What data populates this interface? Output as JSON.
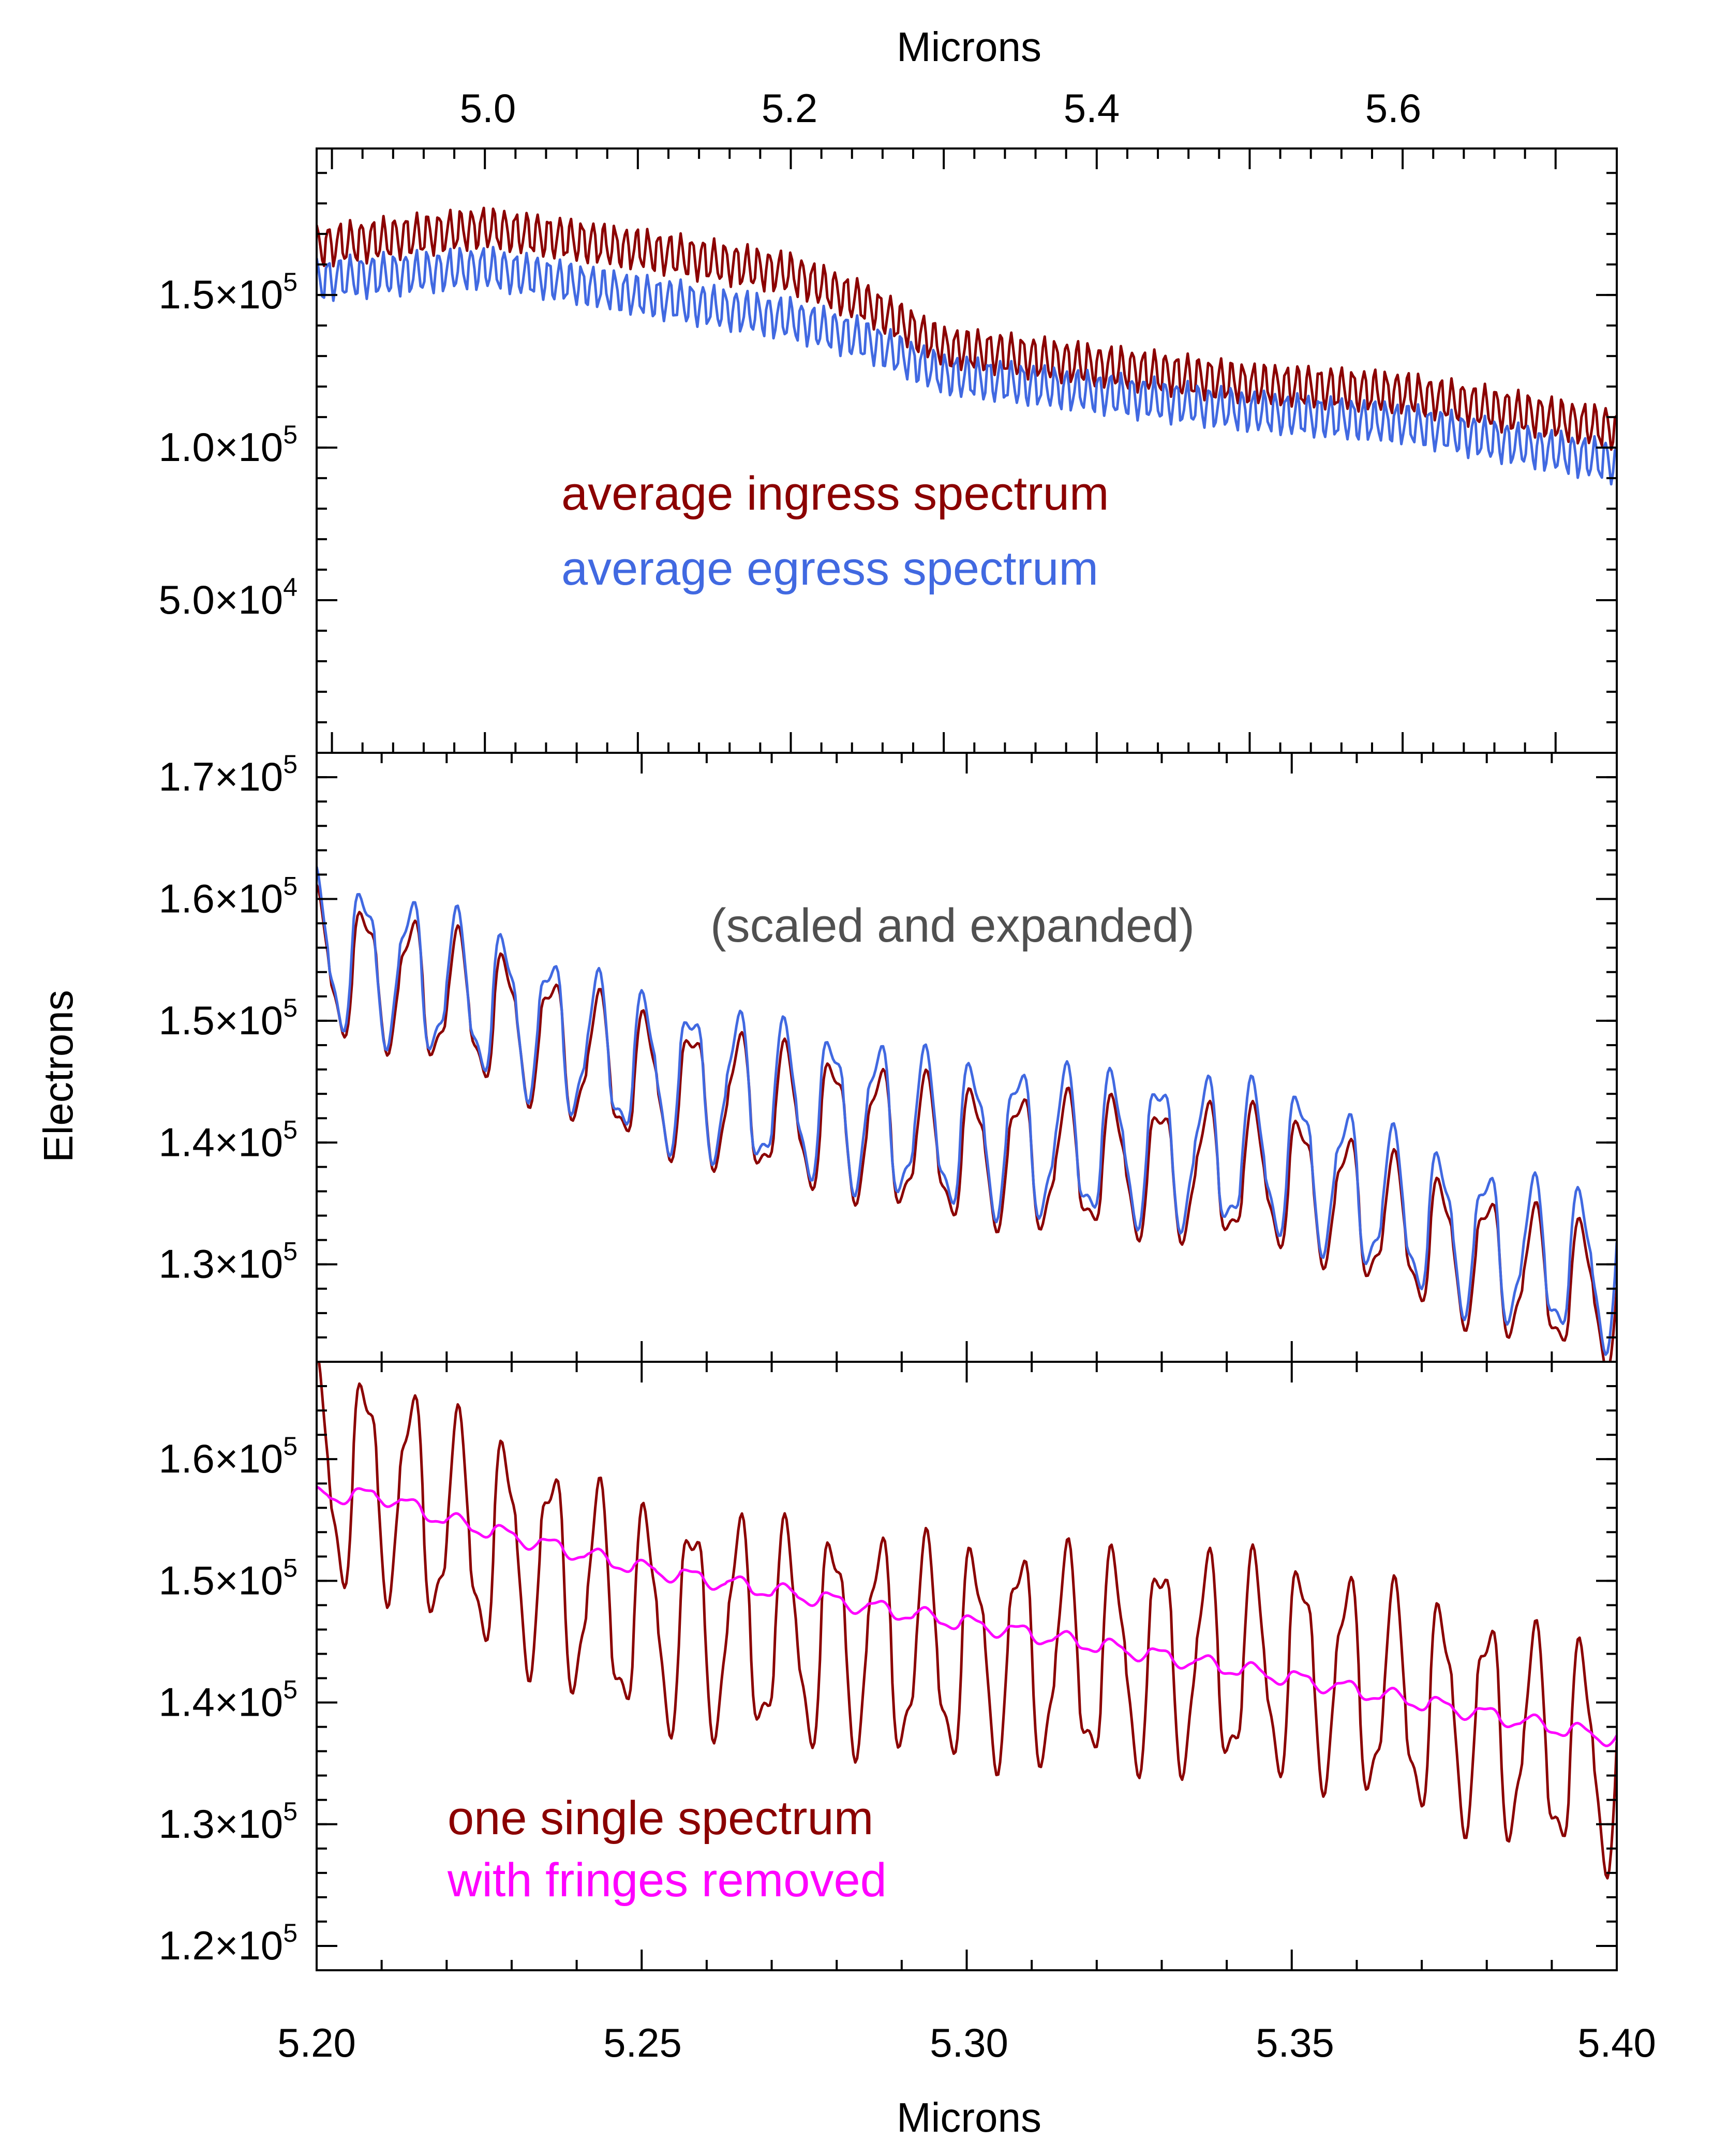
{
  "figure": {
    "ylabel": "Electrons",
    "top_xlabel": "Microns",
    "bottom_xlabel": "Microns",
    "top_xticks": [
      "5.0",
      "5.2",
      "5.4",
      "5.6"
    ],
    "bottom_xticks": [
      "5.20",
      "5.25",
      "5.30",
      "5.35",
      "5.40"
    ]
  },
  "chart_data": [
    {
      "type": "line",
      "panel": "top",
      "xlabel": "Microns",
      "xlim": [
        4.89,
        5.74
      ],
      "ylim": [
        0,
        198000
      ],
      "yticks": [
        {
          "v": 150000,
          "mant": "1.5",
          "exp": "5"
        },
        {
          "v": 100000,
          "mant": "1.0",
          "exp": "5"
        },
        {
          "v": 50000,
          "mant": "5.0",
          "exp": "4"
        }
      ],
      "series": [
        {
          "name": "average ingress spectrum",
          "color": "#8b0000",
          "trend": [
            [
              4.89,
              166000
            ],
            [
              5.0,
              172000
            ],
            [
              5.1,
              165000
            ],
            [
              5.2,
              157000
            ],
            [
              5.25,
              147000
            ],
            [
              5.3,
              133000
            ],
            [
              5.4,
              127000
            ],
            [
              5.5,
              121000
            ],
            [
              5.6,
              118000
            ],
            [
              5.74,
              106000
            ]
          ],
          "fringe_amplitude": 6000,
          "fringe_period": 0.0072
        },
        {
          "name": "average egress spectrum",
          "color": "#4169e1",
          "trend": [
            [
              4.89,
              155000
            ],
            [
              5.0,
              159000
            ],
            [
              5.1,
              150000
            ],
            [
              5.2,
              142000
            ],
            [
              5.25,
              135000
            ],
            [
              5.3,
              124000
            ],
            [
              5.4,
              118000
            ],
            [
              5.5,
              112000
            ],
            [
              5.6,
              108000
            ],
            [
              5.74,
              95000
            ]
          ],
          "fringe_amplitude": 6000,
          "fringe_period": 0.0072
        }
      ]
    },
    {
      "type": "line",
      "panel": "middle",
      "annotation": "(scaled and expanded)",
      "xlim": [
        5.2,
        5.4
      ],
      "ylim": [
        122000,
        172000
      ],
      "yticks": [
        {
          "v": 170000,
          "mant": "1.7",
          "exp": "5"
        },
        {
          "v": 160000,
          "mant": "1.6",
          "exp": "5"
        },
        {
          "v": 150000,
          "mant": "1.5",
          "exp": "5"
        },
        {
          "v": 140000,
          "mant": "1.4",
          "exp": "5"
        },
        {
          "v": 130000,
          "mant": "1.3",
          "exp": "5"
        }
      ],
      "series": [
        {
          "color": "#8b0000",
          "trend": [
            [
              5.2,
              155000
            ],
            [
              5.22,
              152000
            ],
            [
              5.25,
              145000
            ],
            [
              5.3,
              139000
            ],
            [
              5.35,
              137000
            ],
            [
              5.375,
              131000
            ],
            [
              5.4,
              127000
            ]
          ],
          "fringe_amplitude": 5000,
          "fringe_period": 0.0072
        },
        {
          "color": "#4169e1",
          "trend": [
            [
              5.2,
              156000
            ],
            [
              5.22,
              153000
            ],
            [
              5.25,
              146000
            ],
            [
              5.3,
              140500
            ],
            [
              5.35,
              138500
            ],
            [
              5.375,
              132500
            ],
            [
              5.4,
              129000
            ]
          ],
          "fringe_amplitude": 5500,
          "fringe_period": 0.0072
        }
      ]
    },
    {
      "type": "line",
      "panel": "bottom",
      "xlabel": "Microns",
      "xlim": [
        5.2,
        5.4
      ],
      "ylim": [
        118000,
        168000
      ],
      "yticks": [
        {
          "v": 160000,
          "mant": "1.6",
          "exp": "5"
        },
        {
          "v": 150000,
          "mant": "1.5",
          "exp": "5"
        },
        {
          "v": 140000,
          "mant": "1.4",
          "exp": "5"
        },
        {
          "v": 130000,
          "mant": "1.3",
          "exp": "5"
        },
        {
          "v": 120000,
          "mant": "1.2",
          "exp": "5"
        }
      ],
      "series": [
        {
          "name": "one single spectrum",
          "color": "#8b0000",
          "trend": [
            [
              5.2,
              159000
            ],
            [
              5.21,
              158000
            ],
            [
              5.22,
              155000
            ],
            [
              5.25,
              147000
            ],
            [
              5.3,
              144000
            ],
            [
              5.35,
              143000
            ],
            [
              5.4,
              135000
            ]
          ],
          "fringe_amplitude": 8000,
          "fringe_period": 0.0072
        },
        {
          "name": "with fringes removed",
          "color": "#ff00ff",
          "trend": [
            [
              5.2,
              157000
            ],
            [
              5.21,
              157000
            ],
            [
              5.22,
              155000
            ],
            [
              5.25,
              151000
            ],
            [
              5.3,
              146500
            ],
            [
              5.35,
              142000
            ],
            [
              5.4,
              137000
            ]
          ],
          "fringe_amplitude": 600,
          "fringe_period": 0.0072
        }
      ]
    }
  ]
}
